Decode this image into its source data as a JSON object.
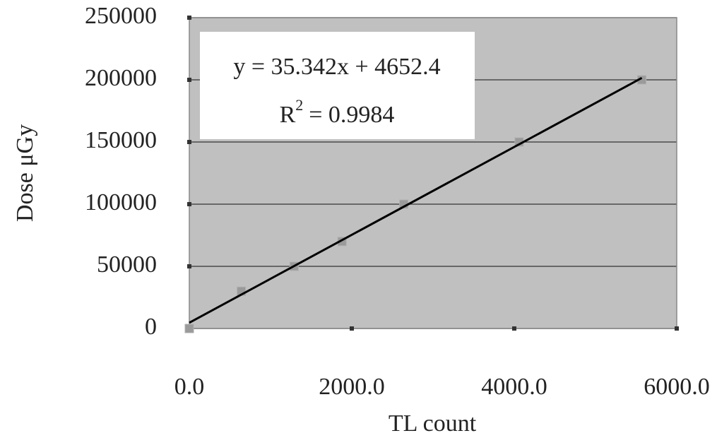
{
  "chart_data": {
    "type": "scatter",
    "x_label": "TL count",
    "y_label": "Dose μGy",
    "x": [
      0,
      640,
      1290,
      1880,
      2640,
      4060,
      5570
    ],
    "series": [
      {
        "color": "#9a9a9a",
        "values": [
          0,
          30000,
          50000,
          70000,
          100000,
          150000,
          200000
        ]
      }
    ],
    "xlim": [
      0,
      6000
    ],
    "ylim": [
      0,
      250000
    ],
    "xticks": [
      {
        "value": 0,
        "label": "0.0"
      },
      {
        "value": 2000,
        "label": "2000.0"
      },
      {
        "value": 4000,
        "label": "4000.0"
      },
      {
        "value": 6000,
        "label": "6000.0"
      }
    ],
    "yticks": [
      0,
      50000,
      100000,
      150000,
      200000,
      250000
    ],
    "grid": true,
    "trendline": {
      "slope": 35.342,
      "intercept": 4652.4,
      "label": "y = 35.342x + 4652.4",
      "r2": {
        "symbol": "R",
        "exponent": "2",
        "text": "= 0.9984"
      }
    }
  }
}
